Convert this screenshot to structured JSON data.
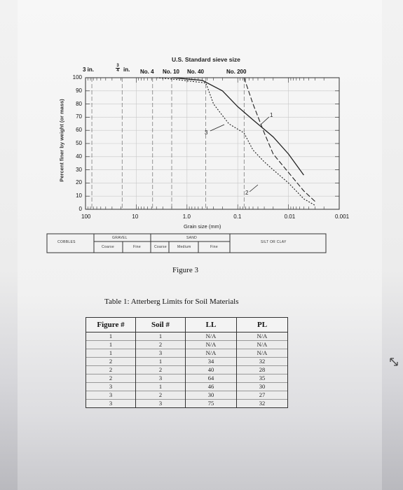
{
  "chart": {
    "sieve_title": "U.S. Standard sieve size",
    "sieve_sizes": [
      "3 in.",
      "in.",
      "No. 4",
      "No. 10",
      "No. 40",
      "No. 200"
    ],
    "sieve_fraction_num": "3",
    "sieve_fraction_den": "4",
    "y_label": "Percent finer by weight (or mass)",
    "y_ticks": [
      "100",
      "90",
      "80",
      "70",
      "60",
      "50",
      "40",
      "30",
      "20",
      "10",
      "0"
    ],
    "x_ticks": [
      "100",
      "10",
      "1.0",
      "0.1",
      "0.01",
      "0.001"
    ],
    "x_label": "Grain size (mm)",
    "curve_labels": [
      "1",
      "2",
      "3"
    ],
    "classification": {
      "cobbles": "COBBLES",
      "gravel": "GRAVEL",
      "sand": "SAND",
      "silt_clay": "SILT OR CLAY",
      "coarse_gravel": "Coarse",
      "fine_gravel": "Fine",
      "coarse_sand": "Coarse",
      "medium_sand": "Medium",
      "fine_sand": "Fine"
    }
  },
  "chart_data": {
    "type": "line",
    "title": "",
    "xlabel": "Grain size (mm)",
    "ylabel": "Percent finer by weight (or mass)",
    "x_scale": "log",
    "x_reversed": true,
    "xlim": [
      100,
      0.001
    ],
    "ylim": [
      0,
      100
    ],
    "series": [
      {
        "name": "1",
        "x": [
          2,
          0.5,
          0.2,
          0.1,
          0.05,
          0.02,
          0.01,
          0.005
        ],
        "y": [
          100,
          98,
          90,
          78,
          68,
          55,
          42,
          26
        ]
      },
      {
        "name": "2",
        "x": [
          0.075,
          0.05,
          0.03,
          0.02,
          0.01,
          0.005,
          0.003
        ],
        "y": [
          100,
          80,
          58,
          42,
          28,
          14,
          6
        ]
      },
      {
        "name": "3",
        "x": [
          4,
          2,
          0.425,
          0.3,
          0.15,
          0.075,
          0.05,
          0.03,
          0.02,
          0.01,
          0.005,
          0.003
        ],
        "y": [
          100,
          99,
          96,
          80,
          65,
          58,
          45,
          36,
          30,
          20,
          8,
          3
        ]
      }
    ]
  },
  "figure_caption": "Figure 3",
  "table": {
    "title": "Table 1: Atterberg Limits for Soil Materials",
    "headers": [
      "Figure #",
      "Soil #",
      "LL",
      "PL"
    ],
    "rows": [
      [
        "1",
        "1",
        "N/A",
        "N/A"
      ],
      [
        "1",
        "2",
        "N/A",
        "N/A"
      ],
      [
        "1",
        "3",
        "N/A",
        "N/A"
      ],
      [
        "2",
        "1",
        "34",
        "32"
      ],
      [
        "2",
        "2",
        "40",
        "28"
      ],
      [
        "2",
        "3",
        "64",
        "35"
      ],
      [
        "3",
        "1",
        "46",
        "30"
      ],
      [
        "3",
        "2",
        "30",
        "27"
      ],
      [
        "3",
        "3",
        "75",
        "32"
      ]
    ]
  }
}
